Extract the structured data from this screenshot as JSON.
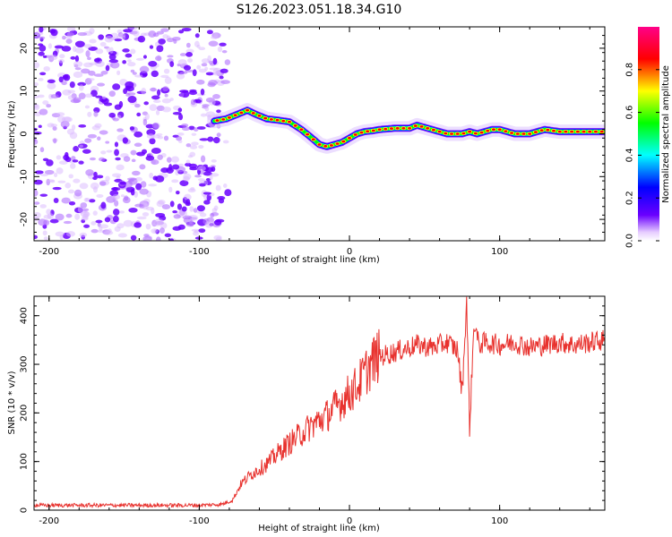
{
  "figure": {
    "title": "S126.2023.051.18.34.G10"
  },
  "chart_data": [
    {
      "id": "spectrogram",
      "type": "heatmap",
      "title": "",
      "xlabel": "Height of straight line (km)",
      "ylabel": "Frequency (Hz)",
      "xlim": [
        -210,
        170
      ],
      "ylim": [
        -25,
        25
      ],
      "x_ticks": [
        -200,
        -100,
        0,
        100
      ],
      "y_ticks": [
        -20,
        -10,
        0,
        10,
        20
      ],
      "grid": false,
      "noise_region_x": [
        -210,
        -85
      ],
      "ridge": {
        "x": [
          -90,
          -82,
          -75,
          -68,
          -62,
          -55,
          -48,
          -40,
          -32,
          -25,
          -20,
          -15,
          -10,
          -5,
          0,
          5,
          10,
          15,
          20,
          30,
          40,
          45,
          50,
          55,
          60,
          65,
          70,
          75,
          80,
          85,
          90,
          95,
          100,
          110,
          115,
          120,
          130,
          140,
          150,
          160,
          170
        ],
        "y": [
          3,
          3.5,
          4.5,
          5.5,
          4.5,
          3.5,
          3.2,
          2.8,
          1,
          -1,
          -2.5,
          -3,
          -2.5,
          -2,
          -1,
          0,
          0.5,
          0.7,
          1,
          1.3,
          1.3,
          2,
          1.5,
          1,
          0.5,
          0,
          0,
          0,
          0.5,
          0,
          0.5,
          1,
          1,
          0,
          0,
          0,
          1,
          0.5,
          0.5,
          0.5,
          0.5
        ]
      },
      "colorbar": {
        "label": "Normalized spectral amplitude",
        "ticks": [
          "0.0",
          "0.2",
          "0.4",
          "0.6",
          "0.8"
        ],
        "range": [
          0,
          1
        ],
        "colors": [
          "#ffffff",
          "#6a00ff",
          "#0000ff",
          "#00ffff",
          "#00ff00",
          "#ffff00",
          "#ff0000",
          "#ff0088"
        ]
      }
    },
    {
      "id": "snr",
      "type": "line",
      "title": "",
      "xlabel": "Height of straight line (km)",
      "ylabel": "SNR (10 * v/v)",
      "xlim": [
        -210,
        170
      ],
      "ylim": [
        0,
        440
      ],
      "x_ticks": [
        -200,
        -100,
        0,
        100
      ],
      "y_ticks": [
        0,
        100,
        200,
        300,
        400
      ],
      "grid": false,
      "line_color": "#e8322e",
      "series": [
        {
          "x": [
            -210,
            -150,
            -100,
            -85,
            -78,
            -72,
            -65,
            -55,
            -45,
            -35,
            -25,
            -15,
            -5,
            5,
            12,
            18,
            25,
            35,
            45,
            55,
            65,
            72,
            75,
            78,
            80,
            83,
            86,
            90,
            100,
            110,
            120,
            130,
            140,
            150,
            160,
            170
          ],
          "y": [
            10,
            10,
            10,
            12,
            20,
            55,
            75,
            95,
            125,
            150,
            175,
            195,
            225,
            255,
            290,
            315,
            320,
            330,
            340,
            335,
            345,
            330,
            240,
            430,
            170,
            390,
            340,
            345,
            340,
            345,
            335,
            340,
            345,
            340,
            345,
            350
          ]
        }
      ]
    }
  ]
}
